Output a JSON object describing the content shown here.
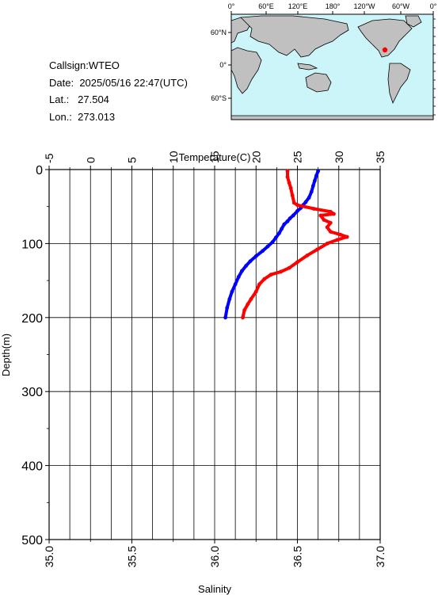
{
  "station": {
    "callsign_label": "Callsign:",
    "callsign": "WTEO",
    "date_label": "Date:",
    "date": "2025/05/16 22:47(UTC)",
    "lat_label": "Lat.:",
    "lat": "27.504",
    "lon_label": "Lon.:",
    "lon": "273.013"
  },
  "map": {
    "lon_ticks": [
      "0°",
      "60°E",
      "120°E",
      "180°",
      "120°W",
      "60°W",
      "0°"
    ],
    "lat_ticks": [
      "60°N",
      "0°",
      "60°S"
    ],
    "ocean_color": "#ccf5fa",
    "land_color": "#c0c0c0",
    "marker_color": "#ff0000"
  },
  "chart_data": {
    "type": "line",
    "y_axis": {
      "label": "Depth(m)",
      "range": [
        0,
        500
      ],
      "ticks": [
        "0",
        "100",
        "200",
        "300",
        "400",
        "500"
      ],
      "inverted": true
    },
    "top_axis": {
      "label": "Temperature(C)",
      "range": [
        -5,
        35
      ],
      "ticks": [
        "-5",
        "0",
        "5",
        "10",
        "15",
        "20",
        "25",
        "30",
        "35"
      ]
    },
    "bottom_axis": {
      "label": "Salinity",
      "range": [
        35.0,
        37.0
      ],
      "ticks": [
        "35.0",
        "35.5",
        "36.0",
        "36.5",
        "37.0"
      ]
    },
    "grid": true,
    "series": [
      {
        "variable": "temperature",
        "color": "#0000ff",
        "points": [
          [
            27.5,
            2
          ],
          [
            27.3,
            8
          ],
          [
            27.1,
            15
          ],
          [
            26.9,
            22
          ],
          [
            26.7,
            30
          ],
          [
            26.4,
            38
          ],
          [
            26.0,
            44
          ],
          [
            25.7,
            48
          ],
          [
            25.4,
            52
          ],
          [
            25.0,
            56
          ],
          [
            24.5,
            62
          ],
          [
            24.1,
            66
          ],
          [
            23.8,
            70
          ],
          [
            23.4,
            74
          ],
          [
            23.1,
            80
          ],
          [
            22.8,
            86
          ],
          [
            22.4,
            92
          ],
          [
            22.0,
            98
          ],
          [
            21.4,
            104
          ],
          [
            20.8,
            110
          ],
          [
            20.0,
            117
          ],
          [
            19.3,
            124
          ],
          [
            18.8,
            130
          ],
          [
            18.3,
            137
          ],
          [
            17.9,
            145
          ],
          [
            17.5,
            155
          ],
          [
            17.1,
            165
          ],
          [
            16.8,
            175
          ],
          [
            16.5,
            187
          ],
          [
            16.3,
            200
          ]
        ]
      },
      {
        "variable": "salinity",
        "color": "#ff0000",
        "points": [
          [
            36.44,
            2
          ],
          [
            36.44,
            10
          ],
          [
            36.45,
            18
          ],
          [
            36.46,
            25
          ],
          [
            36.47,
            35
          ],
          [
            36.48,
            45
          ],
          [
            36.5,
            48
          ],
          [
            36.6,
            53
          ],
          [
            36.7,
            57
          ],
          [
            36.72,
            60
          ],
          [
            36.64,
            62
          ],
          [
            36.66,
            68
          ],
          [
            36.7,
            72
          ],
          [
            36.68,
            78
          ],
          [
            36.7,
            84
          ],
          [
            36.76,
            88
          ],
          [
            36.8,
            91
          ],
          [
            36.74,
            95
          ],
          [
            36.68,
            100
          ],
          [
            36.62,
            108
          ],
          [
            36.56,
            116
          ],
          [
            36.5,
            125
          ],
          [
            36.45,
            133
          ],
          [
            36.4,
            138
          ],
          [
            36.34,
            142
          ],
          [
            36.3,
            148
          ],
          [
            36.27,
            155
          ],
          [
            36.25,
            165
          ],
          [
            36.22,
            175
          ],
          [
            36.2,
            182
          ],
          [
            36.18,
            190
          ],
          [
            36.17,
            200
          ]
        ]
      }
    ]
  }
}
